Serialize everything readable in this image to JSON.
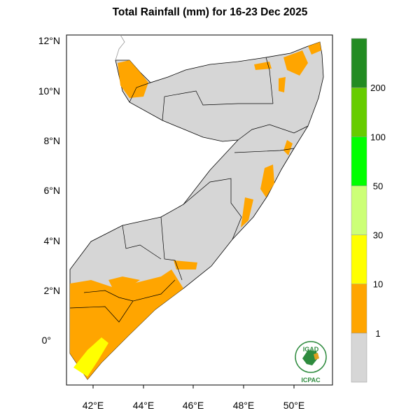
{
  "title": "Total Rainfall (mm) for 16-23 Dec 2025",
  "map": {
    "region": "Somalia",
    "lon_ticks": [
      "42°E",
      "44°E",
      "46°E",
      "48°E",
      "50°E"
    ],
    "lat_ticks": [
      "12°N",
      "10°N",
      "8°N",
      "6°N",
      "4°N",
      "2°N",
      "0°"
    ],
    "colors": {
      "land_no_rain": "#d6d6d6",
      "rain_1_10": "#ffa500",
      "rain_10_30": "#ffff00"
    }
  },
  "legend": {
    "bins": [
      {
        "color": "#d6d6d6"
      },
      {
        "color": "#ffa500"
      },
      {
        "color": "#ffff00"
      },
      {
        "color": "#ccff77"
      },
      {
        "color": "#00ff00"
      },
      {
        "color": "#66cc00"
      },
      {
        "color": "#228b22"
      }
    ],
    "labels": [
      "1",
      "10",
      "30",
      "50",
      "100",
      "200"
    ]
  },
  "logo": {
    "top": "IGAD",
    "bottom": "ICPAC"
  }
}
